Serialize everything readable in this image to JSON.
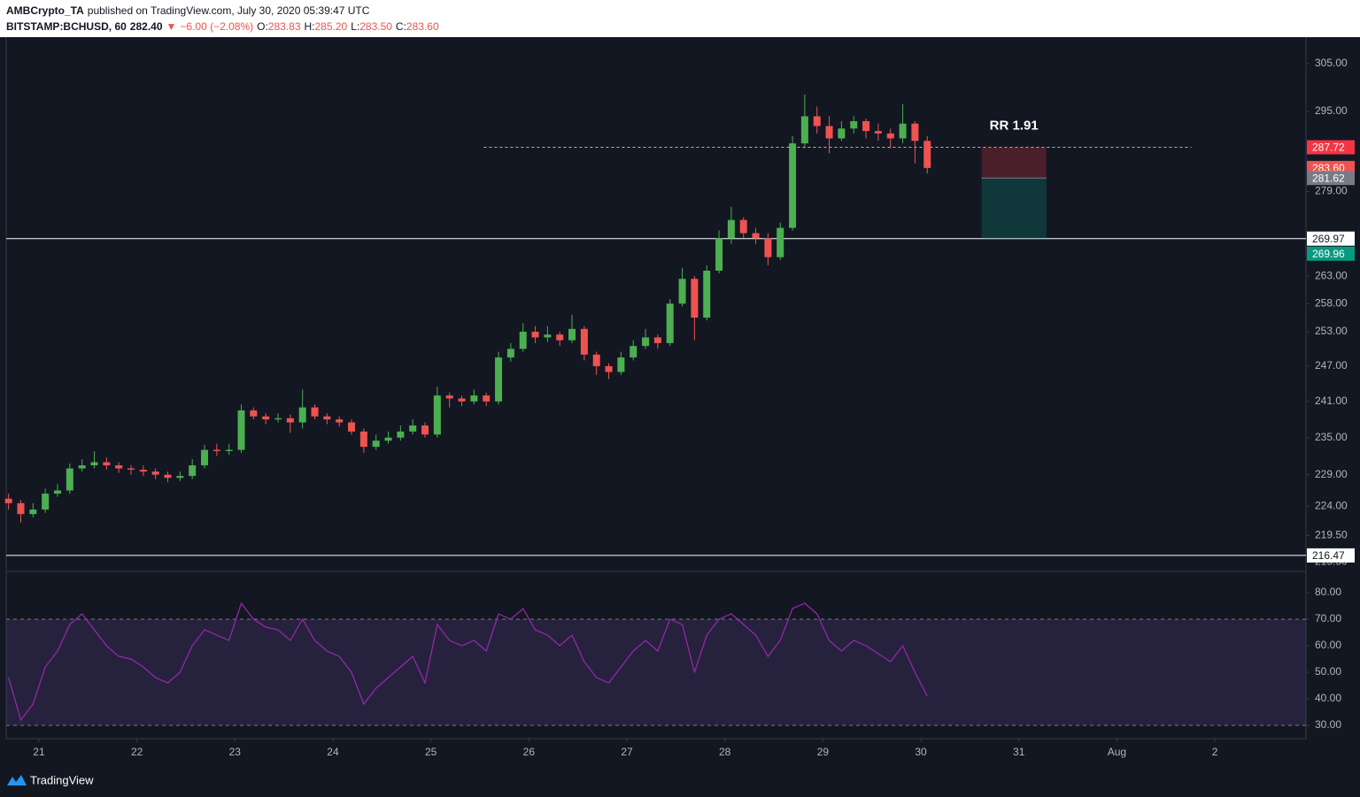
{
  "header": {
    "author": "AMBCrypto_TA",
    "published": "published on TradingView.com, July 30, 2020 05:39:47 UTC",
    "symbol": "BITSTAMP:BCHUSD, 60",
    "price": "282.40",
    "arrow": "▼",
    "change": "−6.00 (−2.08%)",
    "o_label": "O:",
    "o": "283.83",
    "h_label": "H:",
    "h": "285.20",
    "l_label": "L:",
    "l": "283.50",
    "c_label": "C:",
    "c": "283.60"
  },
  "chart_data": [
    {
      "type": "candlestick",
      "log_scale": true,
      "grid": false,
      "up_color": "#4caf50",
      "down_color": "#ef5350",
      "x": [
        20.69,
        20.815,
        20.94,
        21.065,
        21.19,
        21.315,
        21.44,
        21.565,
        21.69,
        21.815,
        21.94,
        22.065,
        22.19,
        22.315,
        22.44,
        22.565,
        22.69,
        22.815,
        22.94,
        23.065,
        23.19,
        23.315,
        23.44,
        23.565,
        23.69,
        23.815,
        23.94,
        24.065,
        24.19,
        24.315,
        24.44,
        24.565,
        24.69,
        24.815,
        24.94,
        25.065,
        25.19,
        25.315,
        25.44,
        25.565,
        25.69,
        25.815,
        25.94,
        26.065,
        26.19,
        26.315,
        26.44,
        26.565,
        26.69,
        26.815,
        26.94,
        27.065,
        27.19,
        27.315,
        27.44,
        27.565,
        27.69,
        27.815,
        27.94,
        28.065,
        28.19,
        28.315,
        28.44,
        28.565,
        28.69,
        28.815,
        28.94,
        29.065,
        29.19,
        29.315,
        29.44,
        29.565,
        29.69,
        29.815,
        29.94,
        30.065
      ],
      "open": [
        225.2,
        224.5,
        222.8,
        223.5,
        226,
        226.5,
        230,
        230.5,
        231,
        230.5,
        230,
        229.8,
        229.5,
        229,
        228.5,
        228.8,
        230.5,
        233,
        232.8,
        233,
        239.5,
        238.5,
        238,
        238.2,
        237.5,
        240,
        238.5,
        238,
        237.5,
        236,
        233.5,
        234.5,
        235,
        236,
        237,
        235.5,
        242,
        241.5,
        241,
        242,
        241,
        248.5,
        250,
        253,
        252,
        252.5,
        251.5,
        253.5,
        249,
        247,
        246,
        248.5,
        250.5,
        252,
        251,
        258,
        262.5,
        255.5,
        264,
        270,
        273.5,
        271,
        270,
        266.5,
        272,
        288.5,
        294,
        292,
        289.5,
        291.5,
        293,
        291,
        290.5,
        289.5,
        292.5,
        289
      ],
      "high": [
        226,
        225,
        224.5,
        226.8,
        227.5,
        230.8,
        231.5,
        232.8,
        231.8,
        231,
        230.5,
        230.5,
        230,
        229.5,
        229.5,
        231.5,
        233.8,
        234,
        234,
        240.5,
        240,
        239,
        239,
        238.8,
        243,
        240.5,
        239,
        238.5,
        238,
        236.5,
        235.5,
        236,
        237,
        238,
        237.5,
        243.5,
        242.5,
        242,
        243,
        242.5,
        249.5,
        251,
        254.5,
        254,
        254,
        253,
        256,
        254,
        249.5,
        247.5,
        249.5,
        251.5,
        253.5,
        252.5,
        258.8,
        264.5,
        263,
        265,
        271.5,
        276,
        274,
        272,
        271,
        273,
        290,
        298.5,
        296,
        294,
        293,
        294,
        293.5,
        292.5,
        291.5,
        296.5,
        293,
        290
      ],
      "low": [
        223.5,
        221.5,
        222.3,
        223,
        225.5,
        226,
        229.5,
        230,
        229.8,
        229.3,
        229,
        228.8,
        228.3,
        227.8,
        228,
        228.3,
        230,
        232,
        232.2,
        232.5,
        238,
        237.2,
        237.5,
        235.8,
        236.5,
        238,
        237.2,
        236.8,
        235.5,
        232.5,
        233,
        234,
        234.5,
        235.5,
        235,
        235,
        240,
        240.2,
        240.5,
        240.2,
        240.5,
        247.8,
        249.5,
        251,
        251.2,
        250.5,
        251,
        248,
        245.5,
        244.8,
        245.5,
        248,
        250,
        250,
        250.5,
        257.5,
        251.5,
        255,
        263.5,
        269,
        270,
        269,
        265,
        266,
        271.5,
        287.5,
        290.5,
        286.5,
        289,
        290.5,
        289.5,
        289,
        287.5,
        288.5,
        284.5,
        282.5
      ],
      "close": [
        224.5,
        222.8,
        223.5,
        226,
        226.5,
        230,
        230.5,
        231,
        230.5,
        230,
        229.8,
        229.5,
        229,
        228.5,
        228.8,
        230.5,
        233,
        232.8,
        233,
        239.5,
        238.5,
        238,
        238.2,
        237.5,
        240,
        238.5,
        238,
        237.5,
        236,
        233.5,
        234.5,
        235,
        236,
        237,
        235.5,
        242,
        241.5,
        241,
        242,
        241,
        248.5,
        250,
        253,
        252,
        252.5,
        251.5,
        253.5,
        249,
        247,
        246,
        248.5,
        250.5,
        252,
        251,
        258,
        262.5,
        255.5,
        264,
        270,
        273.5,
        271,
        270,
        266.5,
        272,
        288.5,
        294,
        292,
        289.5,
        291.5,
        293,
        291,
        290.5,
        289.5,
        292.5,
        289,
        283.6
      ],
      "xlim": [
        20.666,
        33.93
      ],
      "xticks": [
        21,
        22,
        23,
        24,
        25,
        26,
        27,
        28,
        29,
        30,
        31,
        {
          "value": 32,
          "label": "Aug"
        },
        {
          "value": 33,
          "label": "2"
        }
      ],
      "ylim": [
        214.2,
        310.1
      ],
      "yticks": [
        {
          "value": 305,
          "label": "305.00"
        },
        {
          "value": 295,
          "label": "295.00"
        },
        {
          "value": 279,
          "label": "279.00"
        },
        {
          "value": 263,
          "label": "263.00"
        },
        {
          "value": 258,
          "label": "258.00"
        },
        {
          "value": 253,
          "label": "253.00"
        },
        {
          "value": 247,
          "label": "247.00"
        },
        {
          "value": 241,
          "label": "241.00"
        },
        {
          "value": 235,
          "label": "235.00"
        },
        {
          "value": 229,
          "label": "229.00"
        },
        {
          "value": 224,
          "label": "224.00"
        },
        {
          "value": 219.5,
          "label": "219.50"
        },
        {
          "value": 215.5,
          "label": "215.50"
        }
      ],
      "hlines": [
        269.97,
        216.47
      ],
      "last_price": {
        "value": 283.6,
        "label": "283.60"
      },
      "position": {
        "x": [
          30.62,
          31.28
        ],
        "stop_line_x": [
          25.54,
          32.76
        ],
        "stop": 287.72,
        "entry": 281.62,
        "target": 269.96,
        "label": "RR 1.91"
      }
    },
    {
      "type": "line",
      "color": "#9c27b0",
      "x": [
        20.69,
        20.815,
        20.94,
        21.065,
        21.19,
        21.315,
        21.44,
        21.565,
        21.69,
        21.815,
        21.94,
        22.065,
        22.19,
        22.315,
        22.44,
        22.565,
        22.69,
        22.815,
        22.94,
        23.065,
        23.19,
        23.315,
        23.44,
        23.565,
        23.69,
        23.815,
        23.94,
        24.065,
        24.19,
        24.315,
        24.44,
        24.565,
        24.69,
        24.815,
        24.94,
        25.065,
        25.19,
        25.315,
        25.44,
        25.565,
        25.69,
        25.815,
        25.94,
        26.065,
        26.19,
        26.315,
        26.44,
        26.565,
        26.69,
        26.815,
        26.94,
        27.065,
        27.19,
        27.315,
        27.44,
        27.565,
        27.69,
        27.815,
        27.94,
        28.065,
        28.19,
        28.315,
        28.44,
        28.565,
        28.69,
        28.815,
        28.94,
        29.065,
        29.19,
        29.315,
        29.44,
        29.565,
        29.69,
        29.815,
        29.94,
        30.065
      ],
      "values": [
        48,
        32,
        38,
        52,
        58,
        68,
        72,
        66,
        60,
        56,
        55,
        52,
        48,
        46,
        50,
        60,
        66,
        64,
        62,
        76,
        70,
        67,
        66,
        62,
        70,
        62,
        58,
        56,
        50,
        38,
        44,
        48,
        52,
        56,
        46,
        68,
        62,
        60,
        62,
        58,
        72,
        70,
        74,
        66,
        64,
        60,
        64,
        54,
        48,
        46,
        52,
        58,
        62,
        58,
        70,
        68,
        50,
        64,
        70,
        72,
        68,
        64,
        56,
        62,
        74,
        76,
        72,
        62,
        58,
        62,
        60,
        57,
        54,
        60,
        50,
        41
      ],
      "band": [
        30,
        70
      ],
      "ylim": [
        25,
        88
      ],
      "yticks": [
        {
          "value": 80,
          "label": "80.00"
        },
        {
          "value": 70,
          "label": "70.00"
        },
        {
          "value": 60,
          "label": "60.00"
        },
        {
          "value": 50,
          "label": "50.00"
        },
        {
          "value": 40,
          "label": "40.00"
        },
        {
          "value": 30,
          "label": "30.00"
        }
      ]
    }
  ],
  "footer": {
    "brand": "TradingView"
  }
}
